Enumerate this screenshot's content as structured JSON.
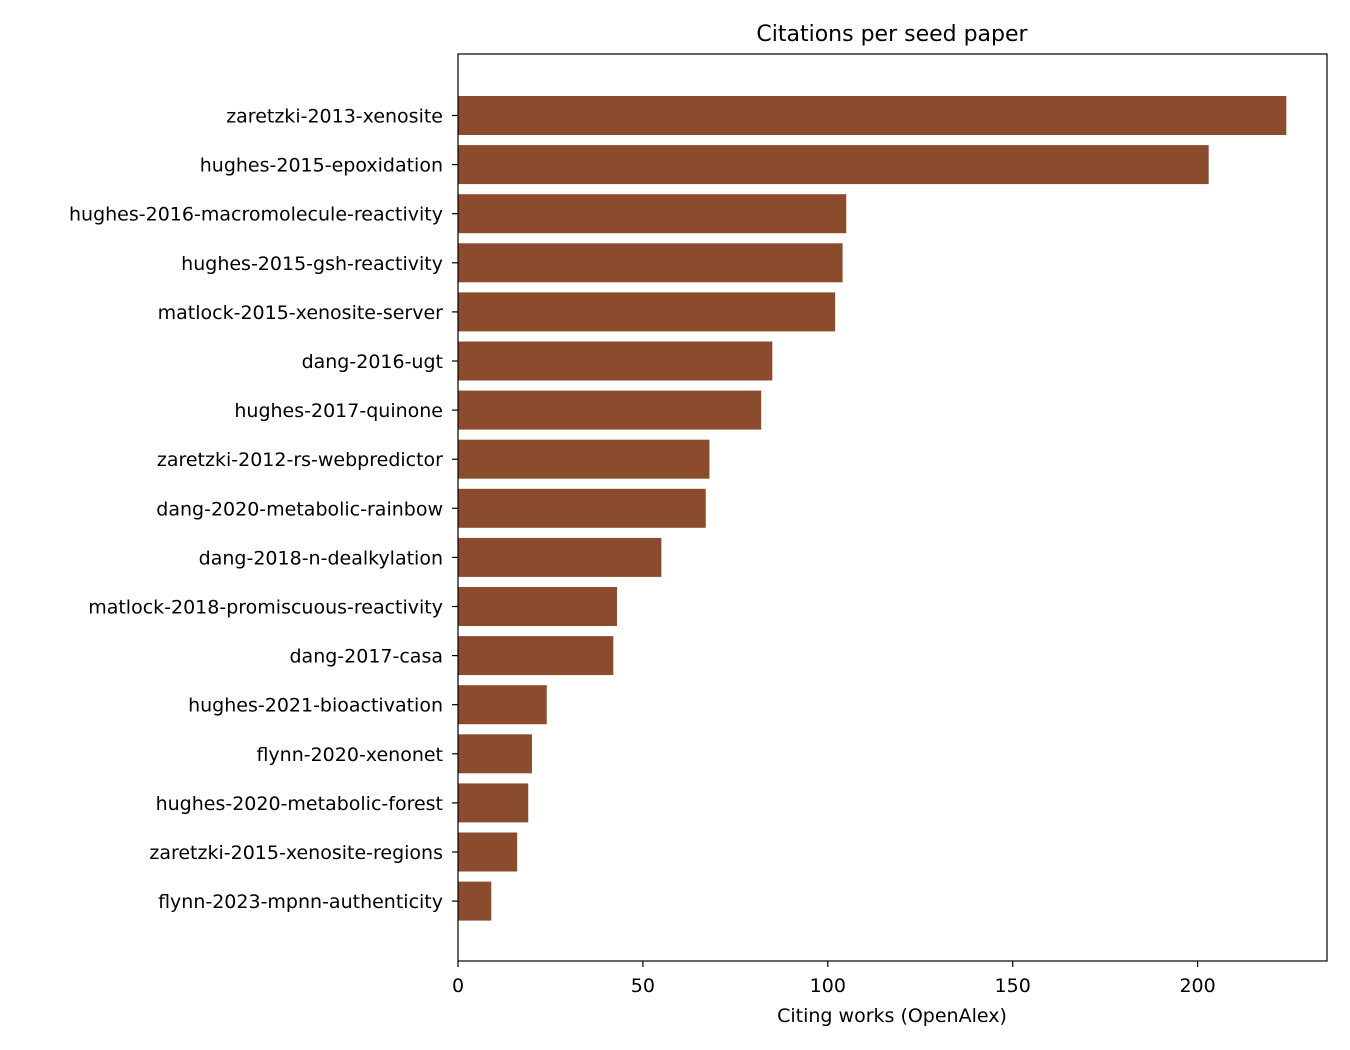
{
  "chart_data": {
    "type": "bar",
    "orientation": "horizontal",
    "title": "Citations per seed paper",
    "xlabel": "Citing works (OpenAlex)",
    "ylabel": "",
    "xlim": [
      0,
      235
    ],
    "xticks": [
      0,
      50,
      100,
      150,
      200
    ],
    "grid": false,
    "bar_color": "#8B4C2E",
    "categories": [
      "zaretzki-2013-xenosite",
      "hughes-2015-epoxidation",
      "hughes-2016-macromolecule-reactivity",
      "hughes-2015-gsh-reactivity",
      "matlock-2015-xenosite-server",
      "dang-2016-ugt",
      "hughes-2017-quinone",
      "zaretzki-2012-rs-webpredictor",
      "dang-2020-metabolic-rainbow",
      "dang-2018-n-dealkylation",
      "matlock-2018-promiscuous-reactivity",
      "dang-2017-casa",
      "hughes-2021-bioactivation",
      "flynn-2020-xenonet",
      "hughes-2020-metabolic-forest",
      "zaretzki-2015-xenosite-regions",
      "flynn-2023-mpnn-authenticity"
    ],
    "values": [
      224,
      203,
      105,
      104,
      102,
      85,
      82,
      68,
      67,
      55,
      43,
      42,
      24,
      20,
      19,
      16,
      9
    ]
  }
}
